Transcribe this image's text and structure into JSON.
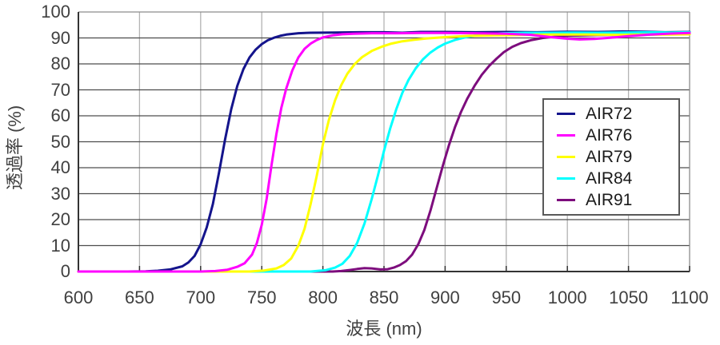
{
  "figure": {
    "background": "#ffffff",
    "text_color": "#404040"
  },
  "chart_data": {
    "type": "line",
    "title": "",
    "xlabel": "波長 (nm)",
    "ylabel": "透過率 (%)",
    "xlim": [
      600,
      1100
    ],
    "ylim": [
      0,
      100
    ],
    "x_ticks": [
      600,
      650,
      700,
      750,
      800,
      850,
      900,
      950,
      1000,
      1050,
      1100
    ],
    "y_ticks": [
      0,
      10,
      20,
      30,
      40,
      50,
      60,
      70,
      80,
      90,
      100
    ],
    "grid": {
      "horizontal_color": "#4d4d4d",
      "vertical_color": "#b3b3b3",
      "frame_color": "#8c8c8c",
      "axis_color": "#333333"
    },
    "legend": {
      "position": "right-middle",
      "border_color": "#595959",
      "background": "#ffffff",
      "entries": [
        "AIR72",
        "AIR76",
        "AIR79",
        "AIR84",
        "AIR91"
      ]
    },
    "draw_order": [
      "AIR72",
      "AIR91",
      "AIR84",
      "AIR79",
      "AIR76"
    ],
    "series": [
      {
        "name": "AIR72",
        "color": "#14148c",
        "points": [
          [
            600,
            0
          ],
          [
            640,
            0
          ],
          [
            655,
            0.1
          ],
          [
            665,
            0.3
          ],
          [
            675,
            0.8
          ],
          [
            685,
            2
          ],
          [
            690,
            3.5
          ],
          [
            695,
            6
          ],
          [
            700,
            10.5
          ],
          [
            705,
            17
          ],
          [
            710,
            26
          ],
          [
            715,
            38
          ],
          [
            720,
            51
          ],
          [
            725,
            62.5
          ],
          [
            730,
            71.5
          ],
          [
            735,
            78
          ],
          [
            740,
            82.5
          ],
          [
            745,
            85.5
          ],
          [
            750,
            87.6
          ],
          [
            755,
            89.1
          ],
          [
            760,
            90.1
          ],
          [
            765,
            90.8
          ],
          [
            770,
            91.3
          ],
          [
            780,
            91.8
          ],
          [
            790,
            92
          ],
          [
            810,
            92.1
          ],
          [
            830,
            92.2
          ],
          [
            850,
            92.2
          ],
          [
            865,
            92
          ],
          [
            880,
            92.3
          ],
          [
            900,
            92.3
          ],
          [
            925,
            92.2
          ],
          [
            950,
            92.3
          ],
          [
            975,
            92.2
          ],
          [
            1000,
            92.4
          ],
          [
            1025,
            92.3
          ],
          [
            1045,
            92.5
          ],
          [
            1065,
            92.4
          ],
          [
            1080,
            92.2
          ],
          [
            1100,
            92.3
          ]
        ]
      },
      {
        "name": "AIR76",
        "color": "#ff00ff",
        "points": [
          [
            600,
            0
          ],
          [
            700,
            0
          ],
          [
            712,
            0.2
          ],
          [
            722,
            0.7
          ],
          [
            730,
            1.8
          ],
          [
            736,
            3.2
          ],
          [
            742,
            6.5
          ],
          [
            746,
            11
          ],
          [
            750,
            18
          ],
          [
            754,
            28
          ],
          [
            758,
            41
          ],
          [
            762,
            53
          ],
          [
            766,
            63
          ],
          [
            770,
            70.5
          ],
          [
            775,
            77.5
          ],
          [
            780,
            82.5
          ],
          [
            785,
            85.8
          ],
          [
            790,
            87.8
          ],
          [
            795,
            89.2
          ],
          [
            800,
            90.2
          ],
          [
            808,
            91
          ],
          [
            816,
            91.4
          ],
          [
            825,
            91.6
          ],
          [
            840,
            91.8
          ],
          [
            860,
            91.8
          ],
          [
            880,
            91.9
          ],
          [
            900,
            91.9
          ],
          [
            925,
            91.8
          ],
          [
            950,
            91.6
          ],
          [
            970,
            91.2
          ],
          [
            985,
            90.4
          ],
          [
            1000,
            89.7
          ],
          [
            1010,
            89.4
          ],
          [
            1022,
            89.6
          ],
          [
            1035,
            90.1
          ],
          [
            1050,
            90.7
          ],
          [
            1068,
            91.3
          ],
          [
            1085,
            91.7
          ],
          [
            1100,
            91.9
          ]
        ]
      },
      {
        "name": "AIR79",
        "color": "#ffff00",
        "points": [
          [
            600,
            0
          ],
          [
            740,
            0
          ],
          [
            752,
            0.4
          ],
          [
            762,
            1.2
          ],
          [
            768,
            2.5
          ],
          [
            774,
            5
          ],
          [
            780,
            10
          ],
          [
            785,
            16.5
          ],
          [
            790,
            26
          ],
          [
            795,
            37
          ],
          [
            800,
            49
          ],
          [
            805,
            58.5
          ],
          [
            810,
            66
          ],
          [
            815,
            71.8
          ],
          [
            820,
            76.2
          ],
          [
            826,
            79.9
          ],
          [
            832,
            82.6
          ],
          [
            840,
            85
          ],
          [
            848,
            86.6
          ],
          [
            856,
            87.8
          ],
          [
            865,
            88.7
          ],
          [
            875,
            89.3
          ],
          [
            885,
            89.8
          ],
          [
            900,
            90.3
          ],
          [
            920,
            90.8
          ],
          [
            940,
            91
          ],
          [
            965,
            91.2
          ],
          [
            990,
            91.3
          ],
          [
            1015,
            91.3
          ],
          [
            1040,
            91.2
          ],
          [
            1065,
            91.3
          ],
          [
            1085,
            91.3
          ],
          [
            1100,
            91.4
          ]
        ]
      },
      {
        "name": "AIR84",
        "color": "#00ffff",
        "points": [
          [
            600,
            0
          ],
          [
            790,
            0
          ],
          [
            802,
            0.5
          ],
          [
            810,
            1.5
          ],
          [
            816,
            3
          ],
          [
            822,
            6
          ],
          [
            828,
            11
          ],
          [
            834,
            18.5
          ],
          [
            840,
            28
          ],
          [
            845,
            37
          ],
          [
            850,
            46.5
          ],
          [
            855,
            55
          ],
          [
            860,
            62.5
          ],
          [
            865,
            68.8
          ],
          [
            870,
            73.8
          ],
          [
            876,
            78.3
          ],
          [
            882,
            81.8
          ],
          [
            888,
            84.4
          ],
          [
            894,
            86.3
          ],
          [
            900,
            87.8
          ],
          [
            908,
            89.2
          ],
          [
            916,
            90.2
          ],
          [
            925,
            91
          ],
          [
            935,
            91.5
          ],
          [
            948,
            91.8
          ],
          [
            965,
            92
          ],
          [
            985,
            92
          ],
          [
            1005,
            92.1
          ],
          [
            1025,
            92
          ],
          [
            1045,
            92.1
          ],
          [
            1065,
            92.2
          ],
          [
            1085,
            92.1
          ],
          [
            1100,
            92.2
          ]
        ]
      },
      {
        "name": "AIR91",
        "color": "#7d0d7d",
        "points": [
          [
            600,
            0
          ],
          [
            808,
            0
          ],
          [
            815,
            0.2
          ],
          [
            822,
            0.6
          ],
          [
            828,
            1
          ],
          [
            834,
            1.3
          ],
          [
            840,
            1.2
          ],
          [
            847,
            0.8
          ],
          [
            853,
            0.9
          ],
          [
            858,
            1.5
          ],
          [
            863,
            2.5
          ],
          [
            868,
            4
          ],
          [
            873,
            6.5
          ],
          [
            878,
            10.5
          ],
          [
            883,
            16
          ],
          [
            888,
            23.5
          ],
          [
            893,
            32
          ],
          [
            898,
            40.5
          ],
          [
            903,
            48.5
          ],
          [
            908,
            55.5
          ],
          [
            913,
            61.5
          ],
          [
            918,
            66.5
          ],
          [
            924,
            71.5
          ],
          [
            930,
            75.8
          ],
          [
            936,
            79.2
          ],
          [
            942,
            82
          ],
          [
            948,
            84.5
          ],
          [
            955,
            86.6
          ],
          [
            962,
            88
          ],
          [
            970,
            89.1
          ],
          [
            980,
            90
          ],
          [
            992,
            90.6
          ],
          [
            1005,
            90.9
          ],
          [
            1025,
            91.1
          ],
          [
            1045,
            91.2
          ],
          [
            1065,
            91.3
          ],
          [
            1085,
            91.4
          ],
          [
            1100,
            91.5
          ]
        ]
      }
    ]
  }
}
